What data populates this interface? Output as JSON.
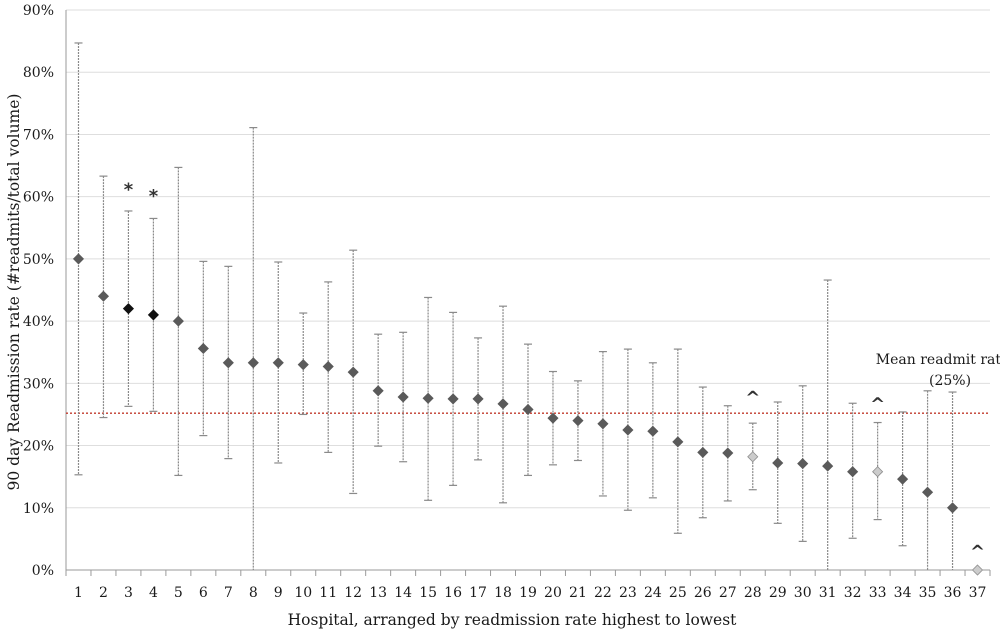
{
  "chart_data": {
    "type": "scatter",
    "title": "",
    "xlabel": "Hospital, arranged by readmission rate highest to lowest",
    "ylabel": "90 day Readmission rate (#readmits/total volume)",
    "ylim": [
      0,
      90
    ],
    "yticks": [
      0,
      10,
      20,
      30,
      40,
      50,
      60,
      70,
      80,
      90
    ],
    "ytick_labels": [
      "0%",
      "10%",
      "20%",
      "30%",
      "40%",
      "50%",
      "60%",
      "70%",
      "80%",
      "90%"
    ],
    "grid": true,
    "x": [
      1,
      2,
      3,
      4,
      5,
      6,
      7,
      8,
      9,
      10,
      11,
      12,
      13,
      14,
      15,
      16,
      17,
      18,
      19,
      20,
      21,
      22,
      23,
      24,
      25,
      26,
      27,
      28,
      29,
      30,
      31,
      32,
      33,
      34,
      35,
      36,
      37
    ],
    "rate": [
      50,
      44,
      42,
      41,
      40,
      35.6,
      33.3,
      33.3,
      33.3,
      33,
      32.7,
      31.8,
      28.8,
      27.8,
      27.6,
      27.5,
      27.5,
      26.7,
      25.8,
      24.4,
      24,
      23.5,
      22.5,
      22.3,
      20.6,
      18.9,
      18.8,
      18.2,
      17.2,
      17.1,
      16.7,
      15.8,
      15.8,
      14.6,
      12.5,
      10,
      0
    ],
    "lower": [
      15.3,
      24.5,
      26.3,
      25.5,
      15.2,
      21.6,
      17.9,
      0,
      17.2,
      25,
      18.9,
      12.3,
      19.9,
      17.4,
      11.2,
      13.6,
      17.7,
      10.8,
      15.2,
      16.9,
      17.6,
      11.9,
      9.6,
      11.6,
      5.9,
      8.4,
      11.1,
      12.9,
      7.5,
      4.6,
      0,
      5.1,
      8.1,
      3.9,
      0,
      0,
      0
    ],
    "upper": [
      84.7,
      63.3,
      57.7,
      56.5,
      64.7,
      49.6,
      48.8,
      71.1,
      49.5,
      41.3,
      46.3,
      51.4,
      37.9,
      38.2,
      43.8,
      41.4,
      37.3,
      42.4,
      36.3,
      31.9,
      30.4,
      35.1,
      35.5,
      33.3,
      35.5,
      29.4,
      26.4,
      23.6,
      27,
      29.6,
      46.6,
      26.8,
      23.7,
      25.4,
      28.8,
      28.6,
      0
    ],
    "marker_style": [
      "dark",
      "dark",
      "black",
      "black",
      "dark",
      "dark",
      "dark",
      "dark",
      "dark",
      "dark",
      "dark",
      "dark",
      "dark",
      "dark",
      "dark",
      "dark",
      "dark",
      "dark",
      "dark",
      "dark",
      "dark",
      "dark",
      "dark",
      "dark",
      "dark",
      "dark",
      "dark",
      "light",
      "dark",
      "dark",
      "dark",
      "dark",
      "light",
      "dark",
      "dark",
      "dark",
      "light"
    ],
    "mean_line": {
      "value": 25.2,
      "color": "#c0392b"
    },
    "annotations": [
      {
        "text": "Mean readmit rate",
        "x": 35.6,
        "y": 33.1
      },
      {
        "text": "(25%)",
        "x": 35.9,
        "y": 29.7
      }
    ],
    "symbols": [
      {
        "text": "*",
        "hospital": 3,
        "y": 61.3
      },
      {
        "text": "*",
        "hospital": 4,
        "y": 60.3
      },
      {
        "text": "^",
        "hospital": 28,
        "y": 27.9
      },
      {
        "text": "^",
        "hospital": 33,
        "y": 26.8
      },
      {
        "text": "^",
        "hospital": 37,
        "y": 3.1
      }
    ],
    "colors": {
      "dark": "#5a5a5a",
      "black": "#111111",
      "light": "#cccccc",
      "errorbar": "#8a8a8a",
      "grid": "#dedede"
    }
  }
}
